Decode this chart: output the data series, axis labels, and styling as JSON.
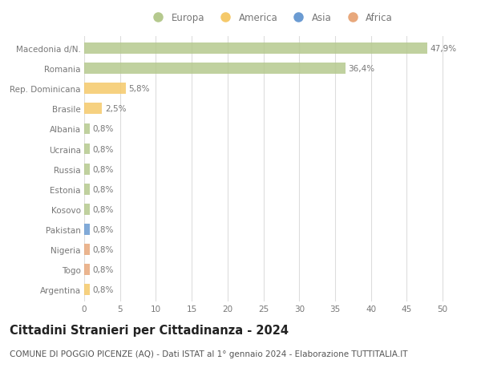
{
  "countries": [
    "Macedonia d/N.",
    "Romania",
    "Rep. Dominicana",
    "Brasile",
    "Albania",
    "Ucraina",
    "Russia",
    "Estonia",
    "Kosovo",
    "Pakistan",
    "Nigeria",
    "Togo",
    "Argentina"
  ],
  "values": [
    47.9,
    36.4,
    5.8,
    2.5,
    0.8,
    0.8,
    0.8,
    0.8,
    0.8,
    0.8,
    0.8,
    0.8,
    0.8
  ],
  "labels": [
    "47,9%",
    "36,4%",
    "5,8%",
    "2,5%",
    "0,8%",
    "0,8%",
    "0,8%",
    "0,8%",
    "0,8%",
    "0,8%",
    "0,8%",
    "0,8%",
    "0,8%"
  ],
  "bar_colors": [
    "#b5c98e",
    "#b5c98e",
    "#f5c96a",
    "#f5c96a",
    "#b5c98e",
    "#b5c98e",
    "#b5c98e",
    "#b5c98e",
    "#b5c98e",
    "#6b9bd2",
    "#e8a87c",
    "#e8a87c",
    "#f5c96a"
  ],
  "legend_labels": [
    "Europa",
    "America",
    "Asia",
    "Africa"
  ],
  "legend_colors": [
    "#b5c98e",
    "#f5c96a",
    "#6b9bd2",
    "#e8a87c"
  ],
  "xlim": [
    0,
    52
  ],
  "xticks": [
    0,
    5,
    10,
    15,
    20,
    25,
    30,
    35,
    40,
    45,
    50
  ],
  "title": "Cittadini Stranieri per Cittadinanza - 2024",
  "subtitle": "COMUNE DI POGGIO PICENZE (AQ) - Dati ISTAT al 1° gennaio 2024 - Elaborazione TUTTITALIA.IT",
  "title_fontsize": 10.5,
  "subtitle_fontsize": 7.5,
  "label_fontsize": 7.5,
  "tick_fontsize": 7.5,
  "legend_fontsize": 8.5,
  "bar_height": 0.55,
  "background_color": "#ffffff",
  "grid_color": "#dddddd",
  "text_color": "#777777",
  "title_color": "#222222",
  "subtitle_color": "#555555"
}
